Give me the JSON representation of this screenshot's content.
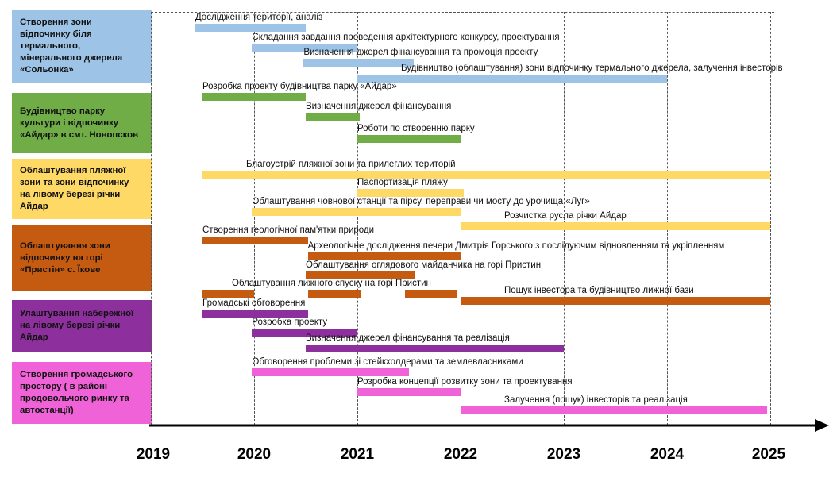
{
  "chart_data": {
    "type": "gantt",
    "xlim": [
      2019,
      2025
    ],
    "x_ticks": [
      "2019",
      "2020",
      "2021",
      "2022",
      "2023",
      "2024",
      "2025"
    ],
    "grid": "dashed vertical lines at each year",
    "categories": [
      {
        "name": "Створення зони\nвідпочинку  біля\nтермального,\nмінерального джерела\n«Сольонка»",
        "color": "#9DC3E6"
      },
      {
        "name": "Будівництво  парку\nкультури  і відпочинку\n«Айдар» в смт. Новопсков",
        "color": "#70AD47"
      },
      {
        "name": "Облаштування  пляжної\nзони та зони відпочинку\nна лівому березі річки\nАйдар",
        "color": "#FFD966"
      },
      {
        "name": "Облаштування  зони\nвідпочинку   на горі\n«Пристін»  с. Їкове",
        "color": "#C55A11"
      },
      {
        "name": "Улаштування  набережної\nна лівому березі річки\nАйдар",
        "color": "#8E2F9E"
      },
      {
        "name": "Створення  громадського\nпростору  ( в районі\nпродовольчого  ринку та\nавтостанції)",
        "color": "#F062D8"
      }
    ],
    "tasks": [
      {
        "category": 0,
        "label": "Дослідження території, аналіз",
        "start": 2019.43,
        "end": 2020.5
      },
      {
        "category": 0,
        "label": "Складання завдання проведення  архітектурного конкурсу, проектування",
        "start": 2019.98,
        "end": 2021.0
      },
      {
        "category": 0,
        "label": "Визначення джерел фінансування та промоція проекту",
        "start": 2020.48,
        "end": 2021.55
      },
      {
        "category": 0,
        "label": "Будівництво (облаштування) зони відпочинку термального джерела, залучення інвесторів",
        "start": 2021.0,
        "end": 2024.0
      },
      {
        "category": 1,
        "label": "Розробка проекту будівництва парку «Айдар»",
        "start": 2019.5,
        "end": 2020.5
      },
      {
        "category": 1,
        "label": "Визначення джерел фінансування",
        "start": 2020.5,
        "end": 2021.02
      },
      {
        "category": 1,
        "label": "Роботи по створенню парку",
        "start": 2021.0,
        "end": 2022.0
      },
      {
        "category": 2,
        "label": "Благоустрій пляжної зони та прилеглих територій",
        "start": 2019.5,
        "end": 2025.0
      },
      {
        "category": 2,
        "label": "Паспортизація пляжу",
        "start": 2021.0,
        "end": 2022.03
      },
      {
        "category": 2,
        "label": "Облаштування човнової станції та пірсу, переправи  чи мосту до урочища «Луг»",
        "start": 2019.98,
        "end": 2022.0
      },
      {
        "category": 2,
        "label": "Розчистка русла річки Айдар",
        "start": 2022.0,
        "end": 2025.0
      },
      {
        "category": 3,
        "label": "Створення  геологічної пам'ятки природи",
        "start": 2019.5,
        "end": 2020.52
      },
      {
        "category": 3,
        "label": "Археологічне дослідження печери  Дмитрія Горського з послідуючим відновленням та укріпленням",
        "start": 2020.52,
        "end": 2022.0
      },
      {
        "category": 3,
        "label": "Облаштування оглядового майданчика на горі Пристин",
        "start": 2020.5,
        "end": 2021.55
      },
      {
        "category": 3,
        "label": "Облаштування лижного спуску на горі Пристин",
        "start": 2019.5,
        "end": 2020.0,
        "label_anchor": "right"
      },
      {
        "category": 3,
        "label": "",
        "start": 2020.52,
        "end": 2021.03
      },
      {
        "category": 3,
        "label": "",
        "start": 2021.46,
        "end": 2021.97
      },
      {
        "category": 3,
        "label": "Пошук  інвестора та будівництво лижної бази",
        "start": 2022.0,
        "end": 2025.0
      },
      {
        "category": 4,
        "label": "Громадські обговорення",
        "start": 2019.5,
        "end": 2020.52
      },
      {
        "category": 4,
        "label": "Розробка проекту",
        "start": 2019.98,
        "end": 2021.0
      },
      {
        "category": 4,
        "label": "Визначення джерел  фінансування та реалізація",
        "start": 2020.5,
        "end": 2023.0
      },
      {
        "category": 5,
        "label": "Обговорення проблеми зі стейкхолдерами та землевласниками",
        "start": 2019.98,
        "end": 2021.5
      },
      {
        "category": 5,
        "label": "Розробка концепції розвитку зони та проектування",
        "start": 2021.0,
        "end": 2022.0
      },
      {
        "category": 5,
        "label": "Залучення  (пошук)  інвесторів та реалізація",
        "start": 2022.0,
        "end": 2024.97
      }
    ]
  }
}
